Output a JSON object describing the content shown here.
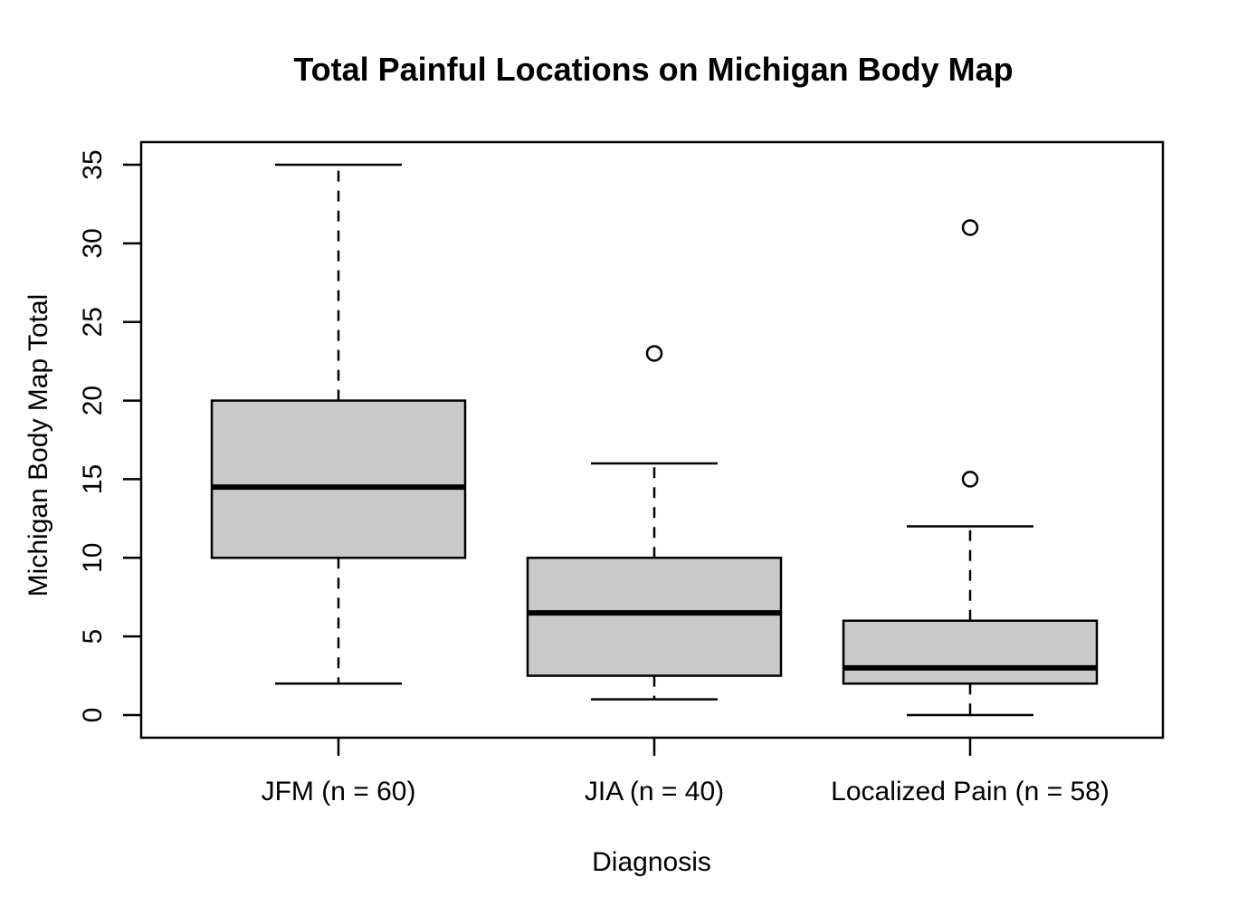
{
  "chart_data": {
    "type": "boxplot",
    "title": "Total Painful Locations on Michigan Body Map",
    "xlabel": "Diagnosis",
    "ylabel": "Michigan Body Map Total",
    "ylim": [
      0,
      35
    ],
    "yticks": [
      0,
      5,
      10,
      15,
      20,
      25,
      30,
      35
    ],
    "categories": [
      "JFM (n = 60)",
      "JIA (n = 40)",
      "Localized Pain (n = 58)"
    ],
    "boxes": [
      {
        "category": "JFM (n = 60)",
        "lower_whisker": 2,
        "q1": 10,
        "median": 14.5,
        "q3": 20,
        "upper_whisker": 35,
        "outliers": []
      },
      {
        "category": "JIA (n = 40)",
        "lower_whisker": 1,
        "q1": 2.5,
        "median": 6.5,
        "q3": 10,
        "upper_whisker": 16,
        "outliers": [
          23
        ]
      },
      {
        "category": "Localized Pain (n = 58)",
        "lower_whisker": 0,
        "q1": 2,
        "median": 3,
        "q3": 6,
        "upper_whisker": 12,
        "outliers": [
          15,
          31
        ]
      }
    ],
    "colors": {
      "box_fill": "#c9c9c9",
      "line": "#000000",
      "background": "#ffffff"
    },
    "grid": false,
    "legend": "none"
  }
}
